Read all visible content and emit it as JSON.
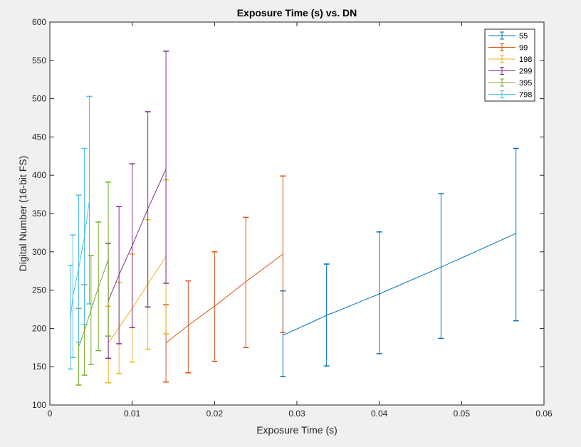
{
  "chart_data": {
    "type": "errorbar-line",
    "title": "Exposure Time (s) vs. DN",
    "xlabel": "Exposure Time (s)",
    "ylabel": "Digital Number (16-bit FS)",
    "xlim": [
      0,
      0.06
    ],
    "ylim": [
      100,
      600
    ],
    "xticks": [
      0,
      0.01,
      0.02,
      0.03,
      0.04,
      0.05,
      0.06
    ],
    "xtick_labels": [
      "0",
      "0.01",
      "0.02",
      "0.03",
      "0.04",
      "0.05",
      "0.06"
    ],
    "yticks": [
      100,
      150,
      200,
      250,
      300,
      350,
      400,
      450,
      500,
      550,
      600
    ],
    "ytick_labels": [
      "100",
      "150",
      "200",
      "250",
      "300",
      "350",
      "400",
      "450",
      "500",
      "550",
      "600"
    ],
    "grid": false,
    "legend_position": "top-right",
    "series": [
      {
        "name": "55",
        "color": "#0072BD",
        "points": [
          {
            "x": 0.0283,
            "y": 191,
            "low": 137,
            "high": 249
          },
          {
            "x": 0.0336,
            "y": 217,
            "low": 151,
            "high": 284
          },
          {
            "x": 0.04,
            "y": 245,
            "low": 167,
            "high": 326
          },
          {
            "x": 0.0475,
            "y": 280,
            "low": 187,
            "high": 376
          },
          {
            "x": 0.0566,
            "y": 324,
            "low": 210,
            "high": 435
          }
        ]
      },
      {
        "name": "99",
        "color": "#D95319",
        "points": [
          {
            "x": 0.0141,
            "y": 181,
            "low": 130,
            "high": 231
          },
          {
            "x": 0.0168,
            "y": 204,
            "low": 142,
            "high": 262
          },
          {
            "x": 0.02,
            "y": 229,
            "low": 157,
            "high": 300
          },
          {
            "x": 0.0238,
            "y": 261,
            "low": 175,
            "high": 345
          },
          {
            "x": 0.0283,
            "y": 297,
            "low": 195,
            "high": 399
          }
        ]
      },
      {
        "name": "198",
        "color": "#EDB120",
        "points": [
          {
            "x": 0.0071,
            "y": 181,
            "low": 129,
            "high": 229
          },
          {
            "x": 0.0084,
            "y": 201,
            "low": 141,
            "high": 260
          },
          {
            "x": 0.01,
            "y": 226,
            "low": 156,
            "high": 297
          },
          {
            "x": 0.0119,
            "y": 258,
            "low": 173,
            "high": 342
          },
          {
            "x": 0.0141,
            "y": 294,
            "low": 193,
            "high": 394
          }
        ]
      },
      {
        "name": "299",
        "color": "#7E2F8E",
        "points": [
          {
            "x": 0.0071,
            "y": 236,
            "low": 161,
            "high": 311
          },
          {
            "x": 0.0084,
            "y": 270,
            "low": 180,
            "high": 359
          },
          {
            "x": 0.01,
            "y": 308,
            "low": 201,
            "high": 415
          },
          {
            "x": 0.0119,
            "y": 356,
            "low": 228,
            "high": 483
          },
          {
            "x": 0.0141,
            "y": 408,
            "low": 259,
            "high": 562
          }
        ]
      },
      {
        "name": "395",
        "color": "#77AC30",
        "points": [
          {
            "x": 0.0035,
            "y": 176,
            "low": 126,
            "high": 226
          },
          {
            "x": 0.0042,
            "y": 197,
            "low": 139,
            "high": 257
          },
          {
            "x": 0.005,
            "y": 224,
            "low": 153,
            "high": 295
          },
          {
            "x": 0.0059,
            "y": 254,
            "low": 171,
            "high": 339
          },
          {
            "x": 0.0071,
            "y": 290,
            "low": 190,
            "high": 391
          }
        ]
      },
      {
        "name": "798",
        "color": "#4DBEEE",
        "points": [
          {
            "x": 0.0025,
            "y": 214,
            "low": 147,
            "high": 282
          },
          {
            "x": 0.0028,
            "y": 242,
            "low": 162,
            "high": 322
          },
          {
            "x": 0.0035,
            "y": 278,
            "low": 182,
            "high": 374
          },
          {
            "x": 0.0042,
            "y": 320,
            "low": 205,
            "high": 435
          },
          {
            "x": 0.0048,
            "y": 367,
            "low": 232,
            "high": 503
          }
        ]
      }
    ]
  }
}
